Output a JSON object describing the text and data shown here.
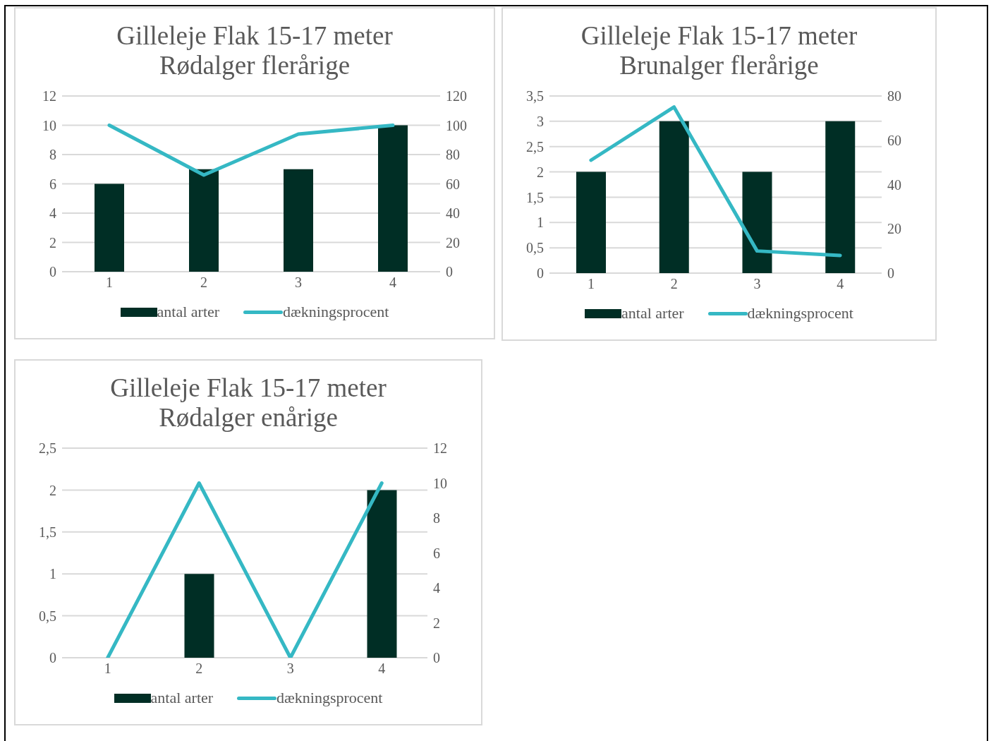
{
  "chart_data": [
    {
      "type": "bar",
      "title": "Gilleleje Flak 15-17 meter\nRødalger flerårige",
      "categories": [
        "1",
        "2",
        "3",
        "4"
      ],
      "series": [
        {
          "name": "antal arter",
          "color": "#002e25",
          "values": [
            6,
            7,
            7,
            10
          ]
        },
        {
          "name": "dækningsprocent",
          "type": "line",
          "axis": "y2",
          "color": "#35b8c4",
          "values": [
            100,
            66,
            94,
            100
          ]
        }
      ],
      "ylim": [
        0,
        12
      ],
      "yticks": [
        0,
        2,
        4,
        6,
        8,
        10,
        12
      ],
      "y2lim": [
        0,
        120
      ],
      "y2ticks": [
        0,
        20,
        40,
        60,
        80,
        100,
        120
      ],
      "grid": "y",
      "legend": "bottom",
      "marker": "none"
    },
    {
      "type": "bar",
      "title": "Gilleleje Flak 15-17 meter\nBrunalger flerårige",
      "categories": [
        "1",
        "2",
        "3",
        "4"
      ],
      "series": [
        {
          "name": "antal arter",
          "color": "#002e25",
          "values": [
            2,
            3,
            2,
            3
          ]
        },
        {
          "name": "dækningsprocent",
          "type": "line",
          "axis": "y2",
          "color": "#35b8c4",
          "values": [
            51,
            75,
            10,
            8
          ]
        }
      ],
      "ylim": [
        0,
        3.5
      ],
      "yticks": [
        0,
        {
          "value": 0.5,
          "label": "0,5"
        },
        1,
        {
          "value": 1.5,
          "label": "1,5"
        },
        2,
        {
          "value": 2.5,
          "label": "2,5"
        },
        3,
        {
          "value": 3.5,
          "label": "3,5"
        }
      ],
      "y2lim": [
        0,
        80
      ],
      "y2ticks": [
        0,
        20,
        40,
        60,
        80
      ],
      "grid": "y",
      "legend": "bottom",
      "marker": "none"
    },
    {
      "type": "bar",
      "title": "Gilleleje Flak 15-17 meter\nRødalger enårige",
      "categories": [
        "1",
        "2",
        "3",
        "4"
      ],
      "series": [
        {
          "name": "antal arter",
          "color": "#002e25",
          "values": [
            0,
            1,
            0,
            2
          ]
        },
        {
          "name": "dækningsprocent",
          "type": "line",
          "axis": "y2",
          "color": "#35b8c4",
          "values": [
            0,
            10,
            0,
            10
          ]
        }
      ],
      "ylim": [
        0,
        2.5
      ],
      "yticks": [
        0,
        {
          "value": 0.5,
          "label": "0,5"
        },
        1,
        {
          "value": 1.5,
          "label": "1,5"
        },
        2,
        {
          "value": 2.5,
          "label": "2,5"
        }
      ],
      "y2lim": [
        0,
        12
      ],
      "y2ticks": [
        0,
        2,
        4,
        6,
        8,
        10,
        12
      ],
      "grid": "y",
      "legend": "bottom",
      "marker": "none"
    }
  ]
}
